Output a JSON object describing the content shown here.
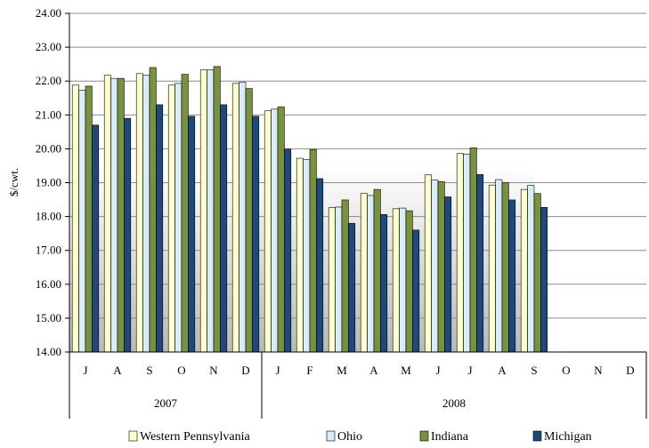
{
  "chart_data": {
    "type": "bar",
    "ylabel": "$/cwt.",
    "ylim": [
      14,
      24
    ],
    "ytick_step": 1,
    "ytick_labels": [
      "14.00",
      "15.00",
      "16.00",
      "17.00",
      "18.00",
      "19.00",
      "20.00",
      "21.00",
      "22.00",
      "23.00",
      "24.00"
    ],
    "categories": [
      "J",
      "A",
      "S",
      "O",
      "N",
      "D",
      "J",
      "F",
      "M",
      "A",
      "M",
      "J",
      "J",
      "A",
      "S",
      "O",
      "N",
      "D"
    ],
    "groups": [
      {
        "label": "2007",
        "count": 6
      },
      {
        "label": "2008",
        "count": 12
      }
    ],
    "grid": "horizontal",
    "legend_position": "bottom",
    "series": [
      {
        "name": "Western Pennsylvania",
        "color": "#ffffcc",
        "values": [
          21.88,
          22.17,
          22.22,
          21.88,
          22.33,
          21.93,
          21.12,
          19.72,
          18.26,
          18.68,
          18.23,
          19.23,
          19.86,
          18.93,
          18.8,
          null,
          null,
          null
        ]
      },
      {
        "name": "Ohio",
        "color": "#d9ecf8",
        "values": [
          21.73,
          22.08,
          22.17,
          21.93,
          22.33,
          21.97,
          21.17,
          19.68,
          18.28,
          18.62,
          18.25,
          19.08,
          19.84,
          19.09,
          18.92,
          null,
          null,
          null
        ]
      },
      {
        "name": "Indiana",
        "color": "#77933c",
        "values": [
          21.85,
          22.08,
          22.4,
          22.2,
          22.43,
          21.78,
          21.24,
          19.98,
          18.49,
          18.8,
          18.17,
          19.03,
          20.03,
          19.0,
          18.68,
          null,
          null,
          null
        ]
      },
      {
        "name": "Michigan",
        "color": "#1f497d",
        "values": [
          20.7,
          20.9,
          21.3,
          20.96,
          21.3,
          20.96,
          19.99,
          19.12,
          17.8,
          18.06,
          17.6,
          18.58,
          19.24,
          18.49,
          18.27,
          null,
          null,
          null
        ]
      }
    ]
  }
}
